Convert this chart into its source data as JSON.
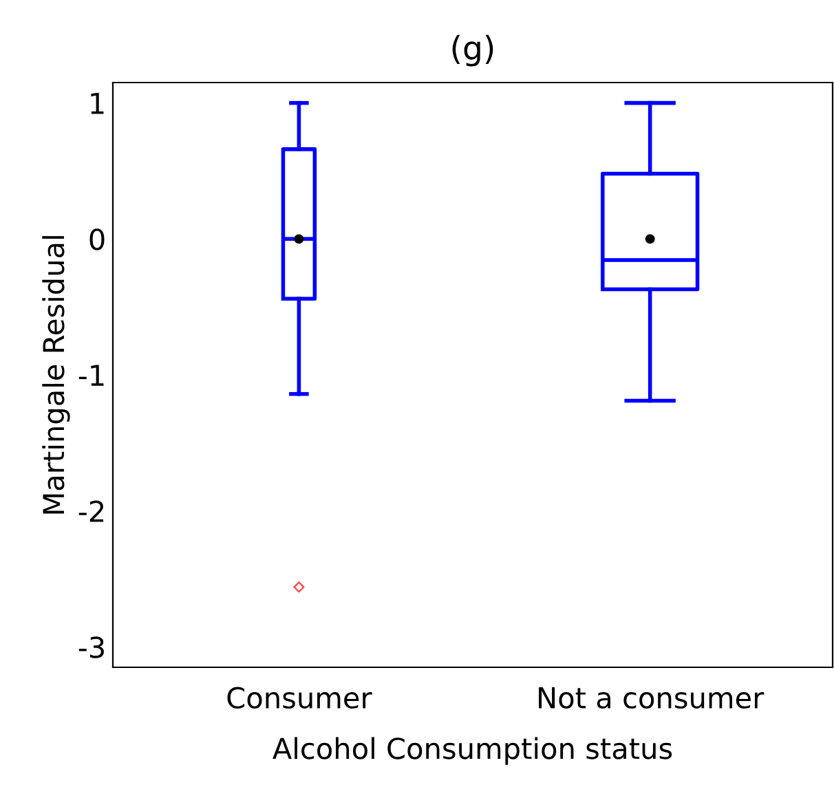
{
  "chart_data": {
    "type": "box",
    "title": "(g)",
    "xlabel": "Alcohol Consumption status",
    "ylabel": "Martingale Residual",
    "categories": [
      "Consumer",
      "Not a consumer"
    ],
    "boxes": [
      {
        "low": -1.14,
        "q1": -0.44,
        "median": 0,
        "q3": 0.66,
        "high": 1.0,
        "mean": 0,
        "outliers": [
          -2.56
        ]
      },
      {
        "low": -1.19,
        "q1": -0.37,
        "median": -0.155,
        "q3": 0.48,
        "high": 1.0,
        "mean": 0
      }
    ],
    "color": "#0000ff",
    "ylim": [
      -3.15,
      1.15
    ],
    "yticks": [
      -3,
      -2,
      -1,
      0,
      1
    ],
    "grid": false
  }
}
